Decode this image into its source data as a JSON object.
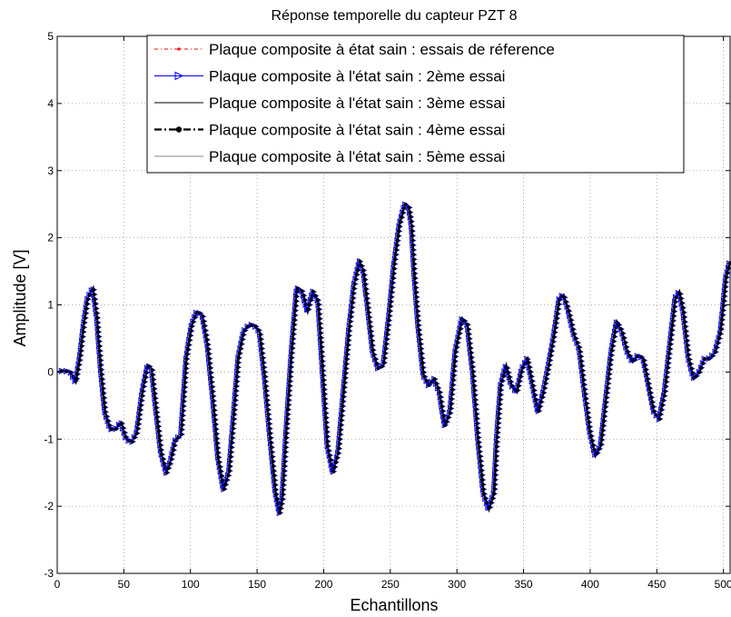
{
  "chart_data": {
    "type": "line",
    "title": "Réponse temporelle du capteur PZT 8",
    "xlabel": "Echantillons",
    "ylabel": "Amplitude [V]",
    "xlim": [
      0,
      505
    ],
    "ylim": [
      -3,
      5
    ],
    "xticks": [
      "0",
      "50",
      "100",
      "150",
      "200",
      "250",
      "300",
      "350",
      "400",
      "450",
      "500"
    ],
    "yticks": [
      "-3",
      "-2",
      "-1",
      "0",
      "1",
      "2",
      "3",
      "4",
      "5"
    ],
    "grid": true,
    "legend_position": "top-right",
    "series": [
      {
        "name": "Plaque composite à état sain : essais de réference",
        "color": "#ff0000",
        "style": "dashdot",
        "marker": "dot"
      },
      {
        "name": "Plaque composite à l'état sain : 2ème essai",
        "color": "#0000ff",
        "style": "solid",
        "marker": "triangle-right"
      },
      {
        "name": "Plaque composite à l'état sain : 3ème essai",
        "color": "#000000",
        "style": "solid",
        "marker": "none"
      },
      {
        "name": "Plaque composite à l'état sain : 4ème essai",
        "color": "#000000",
        "style": "dashdot",
        "marker": "star"
      },
      {
        "name": "Plaque composite à l'état sain : 5ème essai",
        "color": "#00aa00",
        "style": "solid",
        "marker": "none"
      }
    ],
    "x": [
      0,
      5,
      10,
      14,
      17,
      20,
      23,
      27,
      30,
      33,
      36,
      40,
      44,
      48,
      52,
      56,
      60,
      64,
      68,
      71,
      74,
      78,
      82,
      85,
      89,
      93,
      97,
      101,
      105,
      109,
      113,
      117,
      121,
      125,
      129,
      132,
      136,
      140,
      144,
      148,
      152,
      156,
      160,
      164,
      167,
      169,
      172,
      176,
      180,
      184,
      188,
      192,
      196,
      200,
      203,
      207,
      211,
      215,
      219,
      223,
      227,
      230,
      233,
      237,
      241,
      245,
      249,
      253,
      257,
      261,
      264,
      266,
      268,
      271,
      275,
      279,
      283,
      287,
      291,
      295,
      299,
      304,
      308,
      312,
      316,
      320,
      324,
      328,
      330,
      333,
      337,
      341,
      345,
      349,
      353,
      357,
      361,
      365,
      369,
      373,
      377,
      380,
      384,
      388,
      392,
      396,
      400,
      404,
      408,
      412,
      416,
      420,
      424,
      428,
      432,
      436,
      440,
      444,
      448,
      452,
      456,
      460,
      464,
      467,
      470,
      474,
      478,
      482,
      486,
      490,
      494,
      498,
      502,
      505
    ],
    "values": [
      0.0,
      0.02,
      0.0,
      -0.15,
      0.2,
      0.7,
      1.1,
      1.25,
      0.8,
      0.0,
      -0.6,
      -0.85,
      -0.85,
      -0.75,
      -1.0,
      -1.05,
      -0.9,
      -0.3,
      0.1,
      0.05,
      -0.5,
      -1.2,
      -1.5,
      -1.35,
      -1.0,
      -0.95,
      0.2,
      0.7,
      0.9,
      0.85,
      0.4,
      -0.4,
      -1.3,
      -1.75,
      -1.5,
      -0.8,
      0.2,
      0.6,
      0.7,
      0.7,
      0.6,
      -0.1,
      -1.0,
      -1.8,
      -2.1,
      -1.9,
      -0.9,
      0.3,
      1.25,
      1.2,
      0.9,
      1.2,
      1.05,
      -0.2,
      -1.1,
      -1.5,
      -1.2,
      -0.3,
      0.6,
      1.3,
      1.65,
      1.5,
      1.0,
      0.3,
      0.05,
      0.1,
      0.8,
      1.6,
      2.2,
      2.5,
      2.45,
      2.2,
      1.5,
      0.7,
      -0.05,
      -0.2,
      -0.1,
      -0.3,
      -0.8,
      -0.6,
      0.3,
      0.8,
      0.7,
      0.0,
      -1.0,
      -1.8,
      -2.05,
      -1.8,
      -1.0,
      -0.2,
      0.1,
      -0.2,
      -0.3,
      0.05,
      0.2,
      -0.2,
      -0.6,
      -0.3,
      0.1,
      0.55,
      1.1,
      1.15,
      0.9,
      0.55,
      0.35,
      -0.3,
      -0.9,
      -1.25,
      -1.1,
      -0.4,
      0.3,
      0.75,
      0.6,
      0.3,
      0.15,
      0.25,
      0.2,
      -0.2,
      -0.6,
      -0.7,
      -0.3,
      0.4,
      1.1,
      1.2,
      0.9,
      0.2,
      -0.1,
      0.0,
      0.2,
      0.2,
      0.3,
      0.6,
      1.4,
      1.65
    ]
  }
}
